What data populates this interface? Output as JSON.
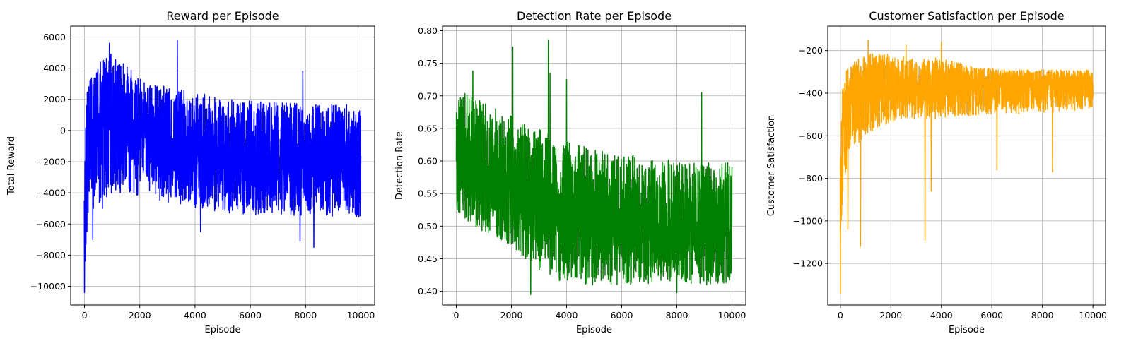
{
  "chart_data": [
    {
      "type": "line",
      "title": "Reward per Episode",
      "xlabel": "Episode",
      "ylabel": "Total Reward",
      "color": "#0000ff",
      "grid": true,
      "xlim": [
        -500,
        10500
      ],
      "ylim": [
        -11200,
        6700
      ],
      "xticks": [
        0,
        2000,
        4000,
        6000,
        8000,
        10000
      ],
      "xtick_labels": [
        "0",
        "2000",
        "4000",
        "6000",
        "8000",
        "10000"
      ],
      "yticks": [
        -10000,
        -8000,
        -6000,
        -4000,
        -2000,
        0,
        2000,
        4000,
        6000
      ],
      "ytick_labels": [
        "−10000",
        "−8000",
        "−6000",
        "−4000",
        "−2000",
        "0",
        "2000",
        "4000",
        "6000"
      ],
      "series": [
        {
          "episodes": [
            0,
            100,
            300,
            600,
            1000,
            1500,
            2000,
            2500,
            3000,
            3500,
            4000,
            4500,
            5000,
            5500,
            6000,
            6500,
            7000,
            7500,
            8000,
            8500,
            9000,
            9500,
            10000
          ],
          "mean": [
            -4500,
            -800,
            200,
            400,
            400,
            100,
            -300,
            -600,
            -800,
            -900,
            -1100,
            -1300,
            -1500,
            -1600,
            -1700,
            -1800,
            -1900,
            -1900,
            -2000,
            -2000,
            -2000,
            -2000,
            -2100
          ],
          "upper": [
            1000,
            2500,
            4000,
            4500,
            5000,
            4200,
            3500,
            3000,
            2800,
            2700,
            2500,
            2300,
            2100,
            2000,
            1900,
            1900,
            1800,
            1800,
            1800,
            1700,
            1700,
            1700,
            1700
          ],
          "lower": [
            -10400,
            -6000,
            -5500,
            -4500,
            -4000,
            -4000,
            -4200,
            -4400,
            -4600,
            -4800,
            -5000,
            -5200,
            -5300,
            -5300,
            -5400,
            -5400,
            -5400,
            -5500,
            -5500,
            -5500,
            -5500,
            -5500,
            -5600
          ],
          "spikes": [
            [
              0,
              -10400
            ],
            [
              900,
              5600
            ],
            [
              3360,
              5800
            ],
            [
              7800,
              -7100
            ],
            [
              8300,
              -7500
            ],
            [
              4200,
              -6500
            ],
            [
              7900,
              3800
            ],
            [
              300,
              -7000
            ],
            [
              650,
              -5000
            ]
          ]
        }
      ]
    },
    {
      "type": "line",
      "title": "Detection Rate per Episode",
      "xlabel": "Episode",
      "ylabel": "Detection Rate",
      "color": "#008000",
      "grid": true,
      "xlim": [
        -500,
        10500
      ],
      "ylim": [
        0.379,
        0.807
      ],
      "xticks": [
        0,
        2000,
        4000,
        6000,
        8000,
        10000
      ],
      "xtick_labels": [
        "0",
        "2000",
        "4000",
        "6000",
        "8000",
        "10000"
      ],
      "yticks": [
        0.4,
        0.45,
        0.5,
        0.55,
        0.6,
        0.65,
        0.7,
        0.75,
        0.8
      ],
      "ytick_labels": [
        "0.40",
        "0.45",
        "0.50",
        "0.55",
        "0.60",
        "0.65",
        "0.70",
        "0.75",
        "0.80"
      ],
      "series": [
        {
          "episodes": [
            0,
            100,
            300,
            600,
            1000,
            1500,
            2000,
            2500,
            3000,
            3500,
            4000,
            4500,
            5000,
            5500,
            6000,
            6500,
            7000,
            7500,
            8000,
            8500,
            9000,
            9500,
            10000
          ],
          "mean": [
            0.6,
            0.59,
            0.59,
            0.58,
            0.57,
            0.56,
            0.555,
            0.545,
            0.535,
            0.525,
            0.515,
            0.51,
            0.505,
            0.5,
            0.5,
            0.498,
            0.495,
            0.495,
            0.495,
            0.495,
            0.495,
            0.495,
            0.495
          ],
          "upper": [
            0.68,
            0.7,
            0.71,
            0.7,
            0.69,
            0.68,
            0.67,
            0.66,
            0.65,
            0.64,
            0.63,
            0.625,
            0.62,
            0.615,
            0.61,
            0.61,
            0.605,
            0.605,
            0.6,
            0.6,
            0.6,
            0.6,
            0.6
          ],
          "lower": [
            0.52,
            0.52,
            0.51,
            0.5,
            0.49,
            0.48,
            0.47,
            0.45,
            0.43,
            0.42,
            0.41,
            0.41,
            0.41,
            0.41,
            0.41,
            0.41,
            0.41,
            0.41,
            0.41,
            0.41,
            0.41,
            0.41,
            0.415
          ],
          "spikes": [
            [
              2050,
              0.775
            ],
            [
              3340,
              0.786
            ],
            [
              2700,
              0.395
            ],
            [
              3400,
              0.735
            ],
            [
              600,
              0.738
            ],
            [
              4000,
              0.725
            ],
            [
              8900,
              0.705
            ],
            [
              8000,
              0.398
            ]
          ]
        }
      ]
    },
    {
      "type": "line",
      "title": "Customer Satisfaction per Episode",
      "xlabel": "Episode",
      "ylabel": "Customer Satisfaction",
      "color": "#ffa500",
      "grid": true,
      "xlim": [
        -500,
        10500
      ],
      "ylim": [
        -1395,
        -85
      ],
      "xticks": [
        0,
        2000,
        4000,
        6000,
        8000,
        10000
      ],
      "xtick_labels": [
        "0",
        "2000",
        "4000",
        "6000",
        "8000",
        "10000"
      ],
      "yticks": [
        -1200,
        -1000,
        -800,
        -600,
        -400,
        -200
      ],
      "ytick_labels": [
        "−1200",
        "−1000",
        "−800",
        "−600",
        "−400",
        "−200"
      ],
      "series": [
        {
          "episodes": [
            0,
            100,
            300,
            600,
            1000,
            1500,
            2000,
            2500,
            3000,
            3500,
            4000,
            4500,
            5000,
            5500,
            6000,
            6500,
            7000,
            7500,
            8000,
            8500,
            9000,
            9500,
            10000
          ],
          "mean": [
            -800,
            -500,
            -420,
            -400,
            -380,
            -370,
            -370,
            -375,
            -370,
            -365,
            -360,
            -360,
            -355,
            -355,
            -355,
            -350,
            -350,
            -350,
            -350,
            -350,
            -350,
            -345,
            -345
          ],
          "upper": [
            -500,
            -330,
            -280,
            -250,
            -220,
            -200,
            -210,
            -230,
            -240,
            -240,
            -230,
            -250,
            -270,
            -280,
            -280,
            -290,
            -290,
            -290,
            -290,
            -290,
            -290,
            -290,
            -290
          ],
          "lower": [
            -1100,
            -850,
            -720,
            -650,
            -600,
            -560,
            -540,
            -520,
            -520,
            -520,
            -520,
            -510,
            -510,
            -500,
            -500,
            -500,
            -500,
            -490,
            -490,
            -490,
            -490,
            -480,
            -470
          ],
          "spikes": [
            [
              0,
              -1340
            ],
            [
              800,
              -1120
            ],
            [
              3350,
              -1090
            ],
            [
              3600,
              -860
            ],
            [
              300,
              -1040
            ],
            [
              1100,
              -150
            ],
            [
              4000,
              -160
            ],
            [
              2600,
              -175
            ],
            [
              6200,
              -760
            ],
            [
              8400,
              -770
            ]
          ]
        }
      ]
    }
  ]
}
